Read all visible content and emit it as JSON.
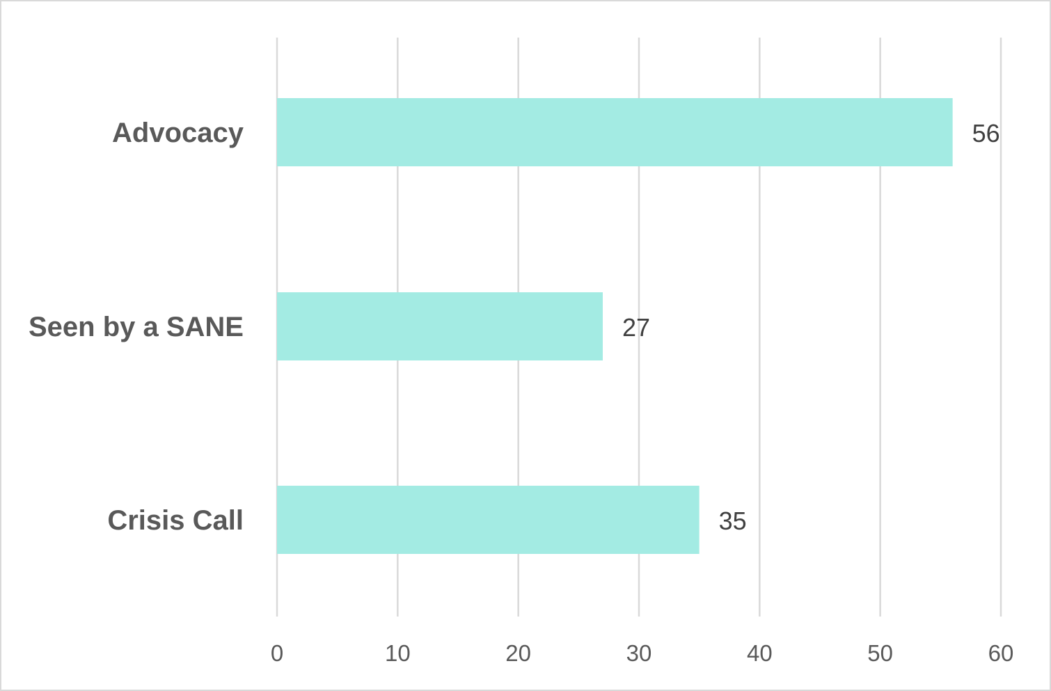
{
  "chart_data": {
    "type": "bar",
    "orientation": "horizontal",
    "categories": [
      "Advocacy",
      "Seen by a SANE",
      "Crisis Call"
    ],
    "values": [
      56,
      27,
      35
    ],
    "data_labels": [
      "56",
      "27",
      "35"
    ],
    "title": "",
    "xlabel": "",
    "ylabel": "",
    "xlim": [
      0,
      60
    ],
    "x_ticks": [
      0,
      10,
      20,
      30,
      40,
      50,
      60
    ],
    "x_tick_labels": [
      "0",
      "10",
      "20",
      "30",
      "40",
      "50",
      "60"
    ],
    "grid": "vertical",
    "legend": "none",
    "bar_color": "#a3ebe3",
    "grid_color": "#d9d9d9",
    "label_color": "#595959"
  }
}
